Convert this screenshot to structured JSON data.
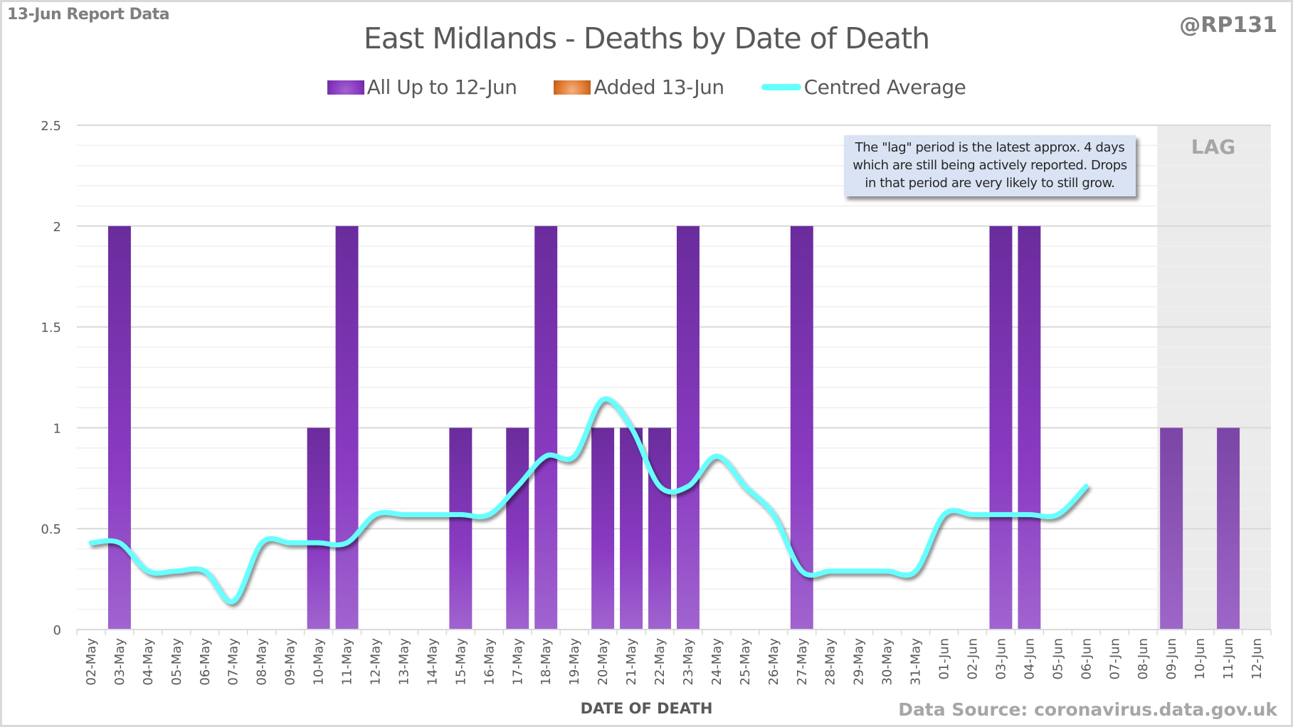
{
  "header": {
    "report_label": "13-Jun Report Data",
    "handle": "@RP131",
    "source": "Data Source: coronavirus.data.gov.uk"
  },
  "colors": {
    "bar_top": "#6a2c9c",
    "bar_mid": "#8a3bc2",
    "bar_bottom": "#a064cf",
    "added": "#e07a30",
    "average": "#66ffff",
    "lag_bg": "#ebebeb",
    "note_bg": "#dae3f3"
  },
  "note": {
    "line1": "The \"lag\" period is the latest approx. 4 days",
    "line2": "which are still being actively reported. Drops",
    "line3": "in that period are very likely to still grow."
  },
  "lag_label": "LAG",
  "chart_data": {
    "type": "bar",
    "title": "East Midlands - Deaths by Date of Death",
    "xlabel": "DATE OF DEATH",
    "ylabel": "",
    "ylim": [
      0,
      2.5
    ],
    "yticks": [
      "0",
      "0.5",
      "1",
      "1.5",
      "2",
      "2.5"
    ],
    "ytick_values": [
      0,
      0.5,
      1,
      1.5,
      2,
      2.5
    ],
    "minor_grid_step": 0.1,
    "grid": true,
    "legend_position": "top-center",
    "lag_start": "09-Jun",
    "categories": [
      "02-May",
      "03-May",
      "04-May",
      "05-May",
      "06-May",
      "07-May",
      "08-May",
      "09-May",
      "10-May",
      "11-May",
      "12-May",
      "13-May",
      "14-May",
      "15-May",
      "16-May",
      "17-May",
      "18-May",
      "19-May",
      "20-May",
      "21-May",
      "22-May",
      "23-May",
      "24-May",
      "25-May",
      "26-May",
      "27-May",
      "28-May",
      "29-May",
      "30-May",
      "31-May",
      "01-Jun",
      "02-Jun",
      "03-Jun",
      "04-Jun",
      "05-Jun",
      "06-Jun",
      "07-Jun",
      "08-Jun",
      "09-Jun",
      "10-Jun",
      "11-Jun",
      "12-Jun"
    ],
    "series": [
      {
        "name": "All Up to 12-Jun",
        "type": "bar",
        "values": [
          0,
          2,
          0,
          0,
          0,
          0,
          0,
          0,
          1,
          2,
          0,
          0,
          0,
          1,
          0,
          1,
          2,
          0,
          1,
          1,
          1,
          2,
          0,
          0,
          0,
          2,
          0,
          0,
          0,
          0,
          0,
          0,
          2,
          2,
          0,
          0,
          0,
          0,
          1,
          0,
          1,
          0
        ]
      },
      {
        "name": "Added 13-Jun",
        "type": "bar",
        "values": [
          0,
          0,
          0,
          0,
          0,
          0,
          0,
          0,
          0,
          0,
          0,
          0,
          0,
          0,
          0,
          0,
          0,
          0,
          0,
          0,
          0,
          0,
          0,
          0,
          0,
          0,
          0,
          0,
          0,
          0,
          0,
          0,
          0,
          0,
          0,
          0,
          0,
          0,
          0,
          0,
          0,
          0
        ]
      },
      {
        "name": "Centred Average",
        "type": "line",
        "values": [
          0.43,
          0.43,
          0.29,
          0.29,
          0.29,
          0.14,
          0.43,
          0.43,
          0.43,
          0.43,
          0.57,
          0.57,
          0.57,
          0.57,
          0.57,
          0.71,
          0.86,
          0.86,
          1.14,
          1.0,
          0.71,
          0.71,
          0.86,
          0.71,
          0.57,
          0.29,
          0.29,
          0.29,
          0.29,
          0.29,
          0.57,
          0.57,
          0.57,
          0.57,
          0.57,
          0.71,
          null,
          null,
          null,
          null,
          null,
          null
        ]
      }
    ]
  }
}
